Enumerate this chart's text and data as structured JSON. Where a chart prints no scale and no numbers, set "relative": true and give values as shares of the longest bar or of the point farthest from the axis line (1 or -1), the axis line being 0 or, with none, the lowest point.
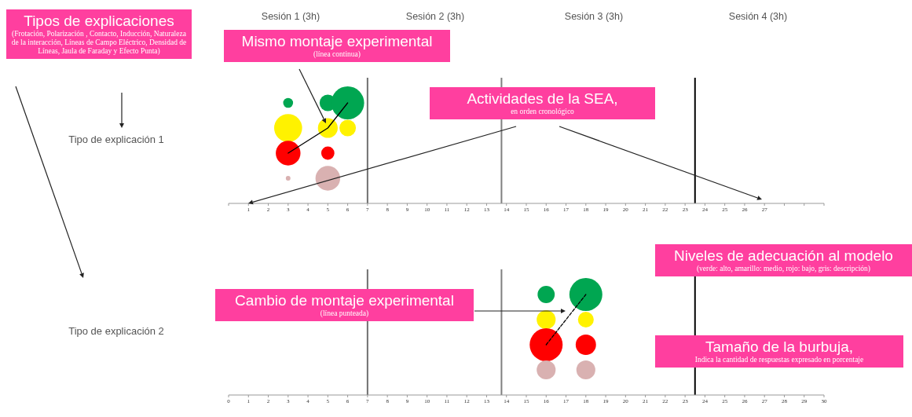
{
  "chart_data": [
    {
      "type": "bubble",
      "title": "Tipos de explicaciones",
      "subtitle": "(Frotación, Polarización , Contacto, Inducción, Naturaleza de la interacción, Líneas de Campo Eléctrico, Densidad de Líneas, Jaula de Faraday y Efecto Punta)",
      "ylabel": "Tipo de explicación 1",
      "xlim": [
        0,
        30
      ],
      "xticks": [
        {
          "value": 0,
          "label": null
        },
        1,
        2,
        3,
        4,
        5,
        6,
        7,
        8,
        9,
        10,
        11,
        12,
        13,
        14,
        15,
        16,
        17,
        18,
        19,
        20,
        21,
        22,
        23,
        24,
        25,
        26,
        27,
        {
          "value": 28,
          "label": null
        },
        {
          "value": 29,
          "label": null
        },
        {
          "value": 30,
          "label": null
        }
      ],
      "relative": true,
      "series": [
        {
          "color": "#00a651",
          "x": [
            3,
            5,
            6
          ],
          "values": [
            1,
            1,
            1
          ],
          "sizes": [
            0.09,
            0.25,
            1
          ]
        },
        {
          "color": "#fff200",
          "x": [
            3,
            5,
            6
          ],
          "values": [
            0.75,
            0.75,
            0.75
          ],
          "sizes": [
            0.72,
            0.36,
            0.25
          ]
        },
        {
          "color": "#ff0000",
          "x": [
            3,
            5
          ],
          "values": [
            0.5,
            0.5
          ],
          "sizes": [
            0.56,
            0.16
          ]
        },
        {
          "color": "#d9b1b1",
          "x": [
            3,
            5
          ],
          "values": [
            0.25,
            0.25
          ],
          "sizes": [
            0.02,
            0.56
          ]
        },
        {
          "type": "line",
          "color": "#000000",
          "x": [
            3,
            5,
            6
          ],
          "values": [
            0.5,
            0.75,
            1
          ],
          "line_style": "solid",
          "marker": "none"
        }
      ],
      "ref_lines": [
        {
          "axis": "x",
          "value": 7,
          "color": "#707070"
        },
        {
          "axis": "x",
          "value": 13.75,
          "color": "#808080"
        },
        {
          "axis": "x",
          "value": 23.5,
          "color": "#000000"
        }
      ],
      "annotations": [
        "Sesión 1 (3h)",
        "Sesión 2 (3h)",
        "Sesión 3 (3h)",
        "Sesión 4 (3h)",
        "Mismo montaje experimental\n(línea continua)",
        "Actividades de la SEA,\nen orden cronológico"
      ]
    },
    {
      "type": "bubble",
      "ylabel": "Tipo de explicación 2",
      "xlim": [
        0,
        30
      ],
      "xticks": [
        0,
        1,
        2,
        3,
        4,
        5,
        6,
        7,
        8,
        9,
        10,
        11,
        12,
        13,
        14,
        15,
        16,
        17,
        18,
        19,
        20,
        21,
        22,
        23,
        24,
        25,
        26,
        27,
        28,
        29,
        30
      ],
      "relative": true,
      "series": [
        {
          "color": "#00a651",
          "x": [
            16,
            18
          ],
          "values": [
            1,
            1
          ],
          "sizes": [
            0.27,
            1
          ]
        },
        {
          "color": "#fff200",
          "x": [
            16,
            18
          ],
          "values": [
            0.75,
            0.75
          ],
          "sizes": [
            0.33,
            0.23
          ]
        },
        {
          "color": "#ff0000",
          "x": [
            16,
            18
          ],
          "values": [
            0.5,
            0.5
          ],
          "sizes": [
            1,
            0.38
          ]
        },
        {
          "color": "#d9b1b1",
          "x": [
            16,
            18
          ],
          "values": [
            0.25,
            0.25
          ],
          "sizes": [
            0.33,
            0.33
          ]
        },
        {
          "type": "line",
          "color": "#000000",
          "x": [
            16,
            18
          ],
          "values": [
            0.5,
            1
          ],
          "line_style": "dotted",
          "marker": "none"
        }
      ],
      "ref_lines": [
        {
          "axis": "x",
          "value": 7,
          "color": "#707070"
        },
        {
          "axis": "x",
          "value": 13.75,
          "color": "#808080"
        },
        {
          "axis": "x",
          "value": 23.5,
          "color": "#000000"
        }
      ],
      "annotations": [
        "Niveles de adecuación al modelo\n(verde: alto, amarillo: medio, rojo: bajo, gris: descripción)",
        "Cambio de montaje experimental\n(línea punteada)",
        "Tamaño de la burbuja,\nIndica la cantidad de respuestas expresado en porcentaje"
      ]
    }
  ]
}
